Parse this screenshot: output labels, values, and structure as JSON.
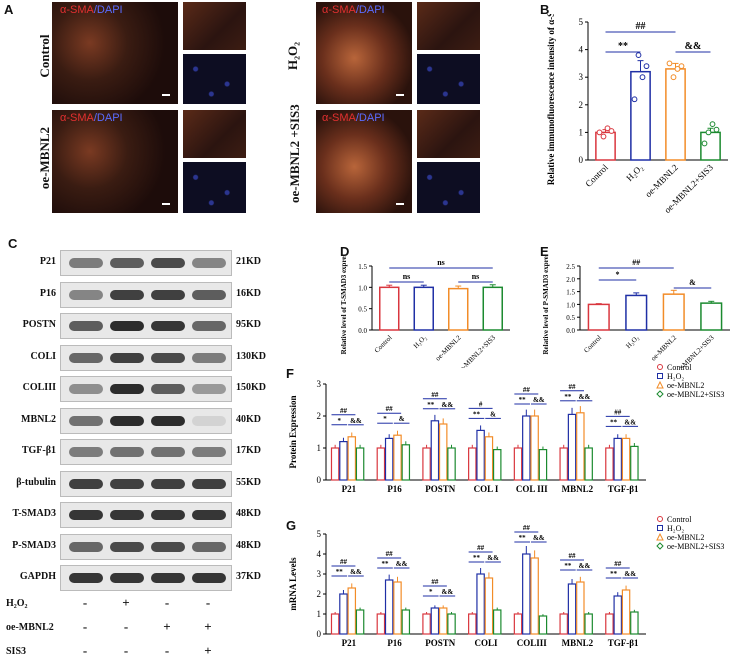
{
  "panels": {
    "a": "A",
    "b": "B",
    "c": "C",
    "d": "D",
    "e": "E",
    "f": "F",
    "g": "G"
  },
  "panel_a": {
    "stain_red": "α-SMA",
    "stain_sep": "/",
    "stain_blue": "DAPI",
    "rows": [
      "Control",
      "oe-MBNL2"
    ],
    "right_rows": [
      "H₂O₂",
      "oe-MBNL2 +SIS3"
    ]
  },
  "blots": {
    "names": [
      "P21",
      "P16",
      "POSTN",
      "COLI",
      "COLIII",
      "MBNL2",
      "TGF-β1",
      "β-tubulin",
      "T-SMAD3",
      "P-SMAD3",
      "GAPDH"
    ],
    "kd": [
      "21KD",
      "16KD",
      "95KD",
      "130KD",
      "150KD",
      "40KD",
      "17KD",
      "55KD",
      "48KD",
      "48KD",
      "37KD"
    ],
    "intensity": [
      [
        0.55,
        0.7,
        0.8,
        0.5
      ],
      [
        0.5,
        0.85,
        0.85,
        0.7
      ],
      [
        0.7,
        0.95,
        0.9,
        0.65
      ],
      [
        0.65,
        0.85,
        0.8,
        0.55
      ],
      [
        0.45,
        0.95,
        0.7,
        0.4
      ],
      [
        0.6,
        0.95,
        0.95,
        0.1
      ],
      [
        0.55,
        0.6,
        0.6,
        0.55
      ],
      [
        0.85,
        0.85,
        0.85,
        0.85
      ],
      [
        0.9,
        0.9,
        0.9,
        0.9
      ],
      [
        0.65,
        0.8,
        0.8,
        0.65
      ],
      [
        0.9,
        0.9,
        0.9,
        0.9
      ]
    ],
    "treatments": [
      {
        "label": "H₂O₂",
        "signs": [
          "-",
          "+",
          "-",
          "-"
        ]
      },
      {
        "label": "oe-MBNL2",
        "signs": [
          "-",
          "-",
          "+",
          "+"
        ]
      },
      {
        "label": "SIS3",
        "signs": [
          "-",
          "-",
          "-",
          "+"
        ]
      }
    ]
  },
  "chart_data": [
    {
      "id": "B",
      "type": "bar",
      "ylabel": "Relative immunofluorescence intensity of α-SMA",
      "categories": [
        "Control",
        "H₂O₂",
        "oe-MBNL2",
        "oe-MBNL2+SIS3"
      ],
      "values": [
        1.0,
        3.2,
        3.3,
        1.0
      ],
      "errors": [
        0.1,
        0.4,
        0.2,
        0.15
      ],
      "points": [
        [
          1.0,
          0.85,
          1.15,
          1.05
        ],
        [
          2.2,
          3.8,
          3.0,
          3.4
        ],
        [
          3.5,
          3.0,
          3.3,
          3.4
        ],
        [
          0.6,
          1.0,
          1.3,
          1.1
        ]
      ],
      "ylim": [
        0,
        5
      ],
      "yticks": [
        0,
        1,
        2,
        3,
        4,
        5
      ],
      "colors": [
        "#d9363e",
        "#1f2fa5",
        "#f28c28",
        "#1b8a2f"
      ],
      "annotations": [
        "##",
        "**",
        "&&"
      ]
    },
    {
      "id": "D",
      "type": "bar",
      "ylabel": "Relative level of T-SMAD3 expression",
      "categories": [
        "Control",
        "H₂O₂",
        "oe-MBNL2",
        "oe-MBNL2+SIS3"
      ],
      "values": [
        1.0,
        1.0,
        0.97,
        1.0
      ],
      "errors": [
        0.05,
        0.05,
        0.06,
        0.06
      ],
      "ylim": [
        0,
        1.5
      ],
      "yticks": [
        0.0,
        0.5,
        1.0,
        1.5
      ],
      "colors": [
        "#d9363e",
        "#1f2fa5",
        "#f28c28",
        "#1b8a2f"
      ],
      "annotations": [
        "ns",
        "ns",
        "ns"
      ]
    },
    {
      "id": "E",
      "type": "bar",
      "ylabel": "Relative level of P-SMAD3 expression",
      "categories": [
        "Control",
        "H₂O₂",
        "oe-MBNL2",
        "oe-MBNL2+SIS3"
      ],
      "values": [
        1.0,
        1.35,
        1.4,
        1.05
      ],
      "errors": [
        0.03,
        0.1,
        0.15,
        0.07
      ],
      "ylim": [
        0,
        2.5
      ],
      "yticks": [
        0.0,
        0.5,
        1.0,
        1.5,
        2.0,
        2.5
      ],
      "colors": [
        "#d9363e",
        "#1f2fa5",
        "#f28c28",
        "#1b8a2f"
      ],
      "annotations": [
        "##",
        "*",
        "&"
      ]
    },
    {
      "id": "F",
      "type": "bar",
      "ylabel": "Protein Expression",
      "categories": [
        "P21",
        "P16",
        "POSTN",
        "COL I",
        "COL III",
        "MBNL2",
        "TGF-β1"
      ],
      "series": [
        {
          "name": "Control",
          "values": [
            1.0,
            1.0,
            1.0,
            1.0,
            1.0,
            1.0,
            1.0
          ]
        },
        {
          "name": "H₂O₂",
          "values": [
            1.2,
            1.3,
            1.85,
            1.55,
            2.0,
            2.05,
            1.3
          ]
        },
        {
          "name": "oe-MBNL2",
          "values": [
            1.35,
            1.4,
            1.75,
            1.35,
            2.0,
            2.1,
            1.3
          ]
        },
        {
          "name": "oe-MBNL2+SIS3",
          "values": [
            1.0,
            1.1,
            1.0,
            0.95,
            0.95,
            1.0,
            1.05
          ]
        }
      ],
      "ylim": [
        0,
        3
      ],
      "yticks": [
        0,
        1,
        2,
        3
      ],
      "colors": [
        "#d9363e",
        "#1f2fa5",
        "#f28c28",
        "#1b8a2f"
      ],
      "annotations": [
        [
          "##",
          "*",
          "&&"
        ],
        [
          "##",
          "*",
          "&"
        ],
        [
          "##",
          "**",
          "&&"
        ],
        [
          "#",
          "**",
          "&"
        ],
        [
          "##",
          "**",
          "&&"
        ],
        [
          "##",
          "**",
          "&&"
        ],
        [
          "##",
          "**",
          "&&"
        ]
      ]
    },
    {
      "id": "G",
      "type": "bar",
      "ylabel": "mRNA Levels",
      "categories": [
        "P21",
        "P16",
        "POSTN",
        "COLI",
        "COLIII",
        "MBNL2",
        "TGF-β1"
      ],
      "series": [
        {
          "name": "Control",
          "values": [
            1.0,
            1.0,
            1.0,
            1.0,
            1.0,
            1.0,
            1.0
          ]
        },
        {
          "name": "H₂O₂",
          "values": [
            2.0,
            2.7,
            1.3,
            3.0,
            4.0,
            2.5,
            1.9
          ]
        },
        {
          "name": "oe-MBNL2",
          "values": [
            2.3,
            2.6,
            1.3,
            2.8,
            3.8,
            2.6,
            2.2
          ]
        },
        {
          "name": "oe-MBNL2+SIS3",
          "values": [
            1.2,
            1.2,
            1.0,
            1.2,
            0.9,
            1.0,
            1.1
          ]
        }
      ],
      "ylim": [
        0,
        5
      ],
      "yticks": [
        0,
        1,
        2,
        3,
        4,
        5
      ],
      "colors": [
        "#d9363e",
        "#1f2fa5",
        "#f28c28",
        "#1b8a2f"
      ],
      "annotations": [
        [
          "##",
          "**",
          "&&"
        ],
        [
          "##",
          "**",
          "&&"
        ],
        [
          "##",
          "*",
          "&&"
        ],
        [
          "##",
          "**",
          "&&"
        ],
        [
          "##",
          "**",
          "&&"
        ],
        [
          "##",
          "**",
          "&&"
        ],
        [
          "##",
          "**",
          "&&"
        ]
      ]
    }
  ]
}
